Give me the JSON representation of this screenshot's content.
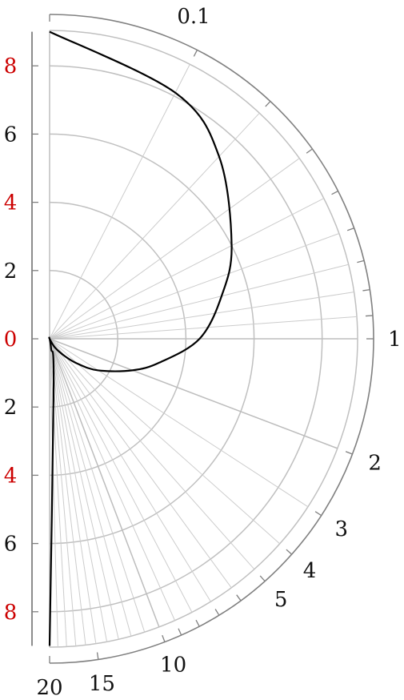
{
  "chart_data": {
    "type": "line",
    "title": "",
    "polar": true,
    "angular_axis": {
      "scale": "log",
      "range": [
        0.1,
        20
      ],
      "tick_labels": [
        "0.1",
        "1",
        "2",
        "3",
        "4",
        "5",
        "10",
        "15",
        "20"
      ]
    },
    "radial_axis": {
      "range": [
        -9,
        9
      ],
      "ticks": [
        -8,
        -6,
        -4,
        -2,
        0,
        2,
        4,
        6,
        8
      ],
      "tick_labels": [
        "8",
        "6",
        "4",
        "2",
        "0",
        "2",
        "4",
        "6",
        "8"
      ],
      "tick_label_color_even_pairs": [
        "#cc0000",
        "#111111"
      ]
    },
    "grid": true,
    "series": [
      {
        "color": "#000000",
        "x": [
          0.1,
          0.2,
          0.3,
          0.5,
          0.7,
          1,
          1.5,
          2,
          3,
          4,
          5,
          7,
          10,
          13,
          15,
          17,
          20
        ],
        "y": [
          -9,
          -8.1,
          -7.3,
          -6,
          -5.2,
          -4.4,
          -3.3,
          -2.6,
          -1.7,
          -1.1,
          -0.7,
          -0.3,
          0,
          0,
          -0.3,
          -1.4,
          -9
        ]
      }
    ]
  }
}
